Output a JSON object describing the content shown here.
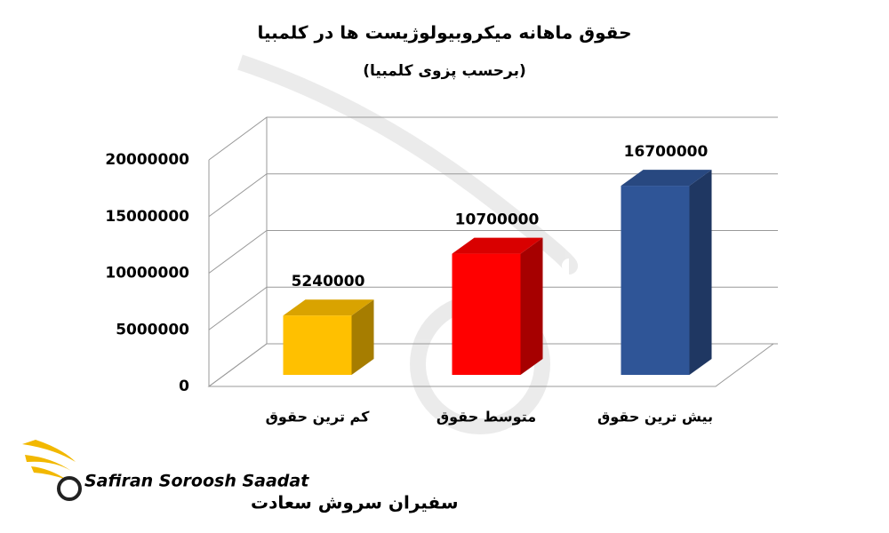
{
  "chart_data": {
    "type": "bar3d",
    "title": "حقوق ماهانه میکروبیولوژیست ها در کلمبیا",
    "subtitle": "(برحسب پزوی کلمبیا)",
    "categories": [
      "کم ترین حقوق",
      "متوسط حقوق",
      "بیش ترین حقوق"
    ],
    "values": [
      5240000,
      10700000,
      16700000
    ],
    "colors": [
      "#ffc000",
      "#ff0000",
      "#2f5597"
    ],
    "ylim": [
      0,
      20000000
    ],
    "yticks": [
      0,
      5000000,
      10000000,
      15000000,
      20000000
    ],
    "grid": true
  },
  "logo": {
    "text_en": "Safiran Soroosh Saadat",
    "text_fa": "سفیران سروش سعادت"
  }
}
